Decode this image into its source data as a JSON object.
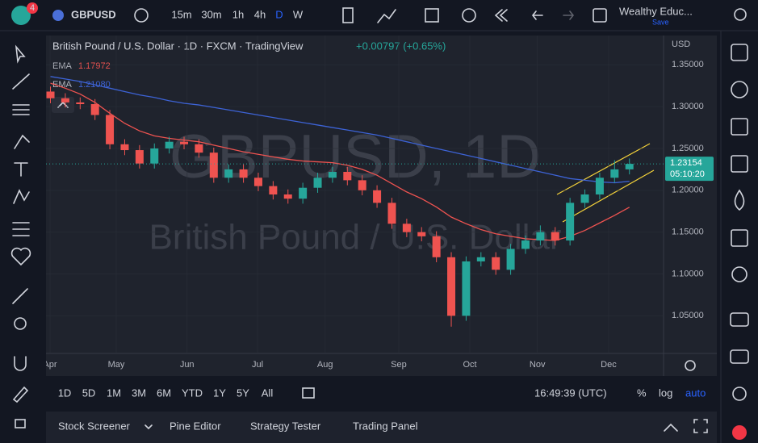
{
  "ui": {
    "badge": "4",
    "symbol": "GBPUSD",
    "intervals": [
      "15m",
      "30m",
      "1h",
      "4h",
      "D",
      "W"
    ],
    "layout_name": "Wealthy Educ...",
    "save": "Save",
    "change": "+0.00797 (+0.65%)",
    "currency": "USD",
    "countdown": "05:10:20",
    "watermark_symbol": "GBPUSD, 1D",
    "watermark_name": "British Pound / U.S. Dollar",
    "ranges": [
      "1D",
      "5D",
      "1M",
      "3M",
      "6M",
      "YTD",
      "1Y",
      "5Y",
      "All"
    ],
    "clock": "16:49:39 (UTC)",
    "scale_options": [
      "%",
      "log",
      "auto"
    ],
    "panels": [
      "Stock Screener",
      "Pine Editor",
      "Strategy Tester",
      "Trading Panel"
    ]
  },
  "chart_data": {
    "type": "candlestick",
    "title": "British Pound / U.S. Dollar · 1D · FXCM · TradingView",
    "up_color": "#26a69a",
    "down_color": "#ef5350",
    "open": [
      1.318,
      1.31,
      1.305,
      1.303,
      1.29,
      1.255,
      1.248,
      1.232,
      1.25,
      1.258,
      1.255,
      1.245,
      1.215,
      1.225,
      1.215,
      1.205,
      1.195,
      1.19,
      1.203,
      1.215,
      1.222,
      1.212,
      1.2,
      1.185,
      1.16,
      1.15,
      1.145,
      1.12,
      1.05,
      1.115,
      1.12,
      1.105,
      1.13,
      1.14,
      1.15,
      1.14,
      1.185,
      1.195,
      1.215,
      1.225
    ],
    "high": [
      1.324,
      1.316,
      1.311,
      1.309,
      1.296,
      1.261,
      1.254,
      1.256,
      1.264,
      1.264,
      1.261,
      1.251,
      1.231,
      1.231,
      1.221,
      1.211,
      1.201,
      1.209,
      1.221,
      1.228,
      1.228,
      1.218,
      1.206,
      1.191,
      1.166,
      1.156,
      1.151,
      1.126,
      1.121,
      1.126,
      1.126,
      1.136,
      1.146,
      1.158,
      1.156,
      1.191,
      1.201,
      1.221,
      1.236,
      1.238
    ],
    "low": [
      1.304,
      1.299,
      1.297,
      1.284,
      1.249,
      1.242,
      1.226,
      1.226,
      1.244,
      1.249,
      1.239,
      1.209,
      1.209,
      1.209,
      1.199,
      1.189,
      1.184,
      1.184,
      1.197,
      1.209,
      1.206,
      1.194,
      1.179,
      1.154,
      1.144,
      1.139,
      1.114,
      1.037,
      1.044,
      1.109,
      1.099,
      1.099,
      1.124,
      1.134,
      1.134,
      1.134,
      1.179,
      1.189,
      1.209,
      1.219
    ],
    "close": [
      1.31,
      1.305,
      1.303,
      1.29,
      1.255,
      1.248,
      1.232,
      1.25,
      1.258,
      1.255,
      1.245,
      1.215,
      1.225,
      1.215,
      1.205,
      1.195,
      1.19,
      1.203,
      1.215,
      1.222,
      1.212,
      1.2,
      1.185,
      1.16,
      1.15,
      1.145,
      1.12,
      1.05,
      1.115,
      1.12,
      1.105,
      1.13,
      1.14,
      1.15,
      1.14,
      1.185,
      1.195,
      1.215,
      1.225,
      1.23154
    ],
    "series": [
      {
        "name": "EMA",
        "label": "1.17972",
        "color": "#ef5350",
        "values": [
          1.328,
          1.322,
          1.315,
          1.305,
          1.292,
          1.28,
          1.271,
          1.265,
          1.262,
          1.26,
          1.258,
          1.254,
          1.25,
          1.246,
          1.243,
          1.24,
          1.237,
          1.235,
          1.234,
          1.233,
          1.23,
          1.225,
          1.218,
          1.208,
          1.198,
          1.19,
          1.18,
          1.168,
          1.16,
          1.153,
          1.148,
          1.145,
          1.142,
          1.141,
          1.14,
          1.145,
          1.152,
          1.161,
          1.17,
          1.17972
        ]
      },
      {
        "name": "EMA",
        "label": "1.21080",
        "color": "#3d63d6",
        "values": [
          1.336,
          1.333,
          1.33,
          1.326,
          1.322,
          1.318,
          1.314,
          1.311,
          1.307,
          1.304,
          1.302,
          1.299,
          1.296,
          1.293,
          1.29,
          1.287,
          1.284,
          1.281,
          1.278,
          1.275,
          1.272,
          1.269,
          1.266,
          1.262,
          1.258,
          1.254,
          1.25,
          1.246,
          1.242,
          1.238,
          1.234,
          1.23,
          1.226,
          1.222,
          1.218,
          1.214,
          1.212,
          1.21,
          1.209,
          1.2108
        ]
      }
    ],
    "xlim": [
      -0.3,
      41.3
    ],
    "xticks": [
      {
        "value": -0.03,
        "label": "Apr"
      },
      {
        "value": 4.43,
        "label": "May"
      },
      {
        "value": 9.2,
        "label": "Jun"
      },
      {
        "value": 13.95,
        "label": "Jul"
      },
      {
        "value": 18.5,
        "label": "Aug"
      },
      {
        "value": 23.46,
        "label": "Sep"
      },
      {
        "value": 28.25,
        "label": "Oct"
      },
      {
        "value": 32.8,
        "label": "Nov"
      },
      {
        "value": 37.6,
        "label": "Dec"
      }
    ],
    "ylim": [
      1.005,
      1.385
    ],
    "yticks": [
      {
        "value": 1.05,
        "label": "1.05000"
      },
      {
        "value": 1.1,
        "label": "1.10000"
      },
      {
        "value": 1.15,
        "label": "1.15000"
      },
      {
        "value": 1.2,
        "label": "1.20000"
      },
      {
        "value": 1.25,
        "label": "1.25000"
      },
      {
        "value": 1.3,
        "label": "1.30000"
      },
      {
        "value": 1.35,
        "label": "1.35000"
      }
    ],
    "grid": true
  }
}
